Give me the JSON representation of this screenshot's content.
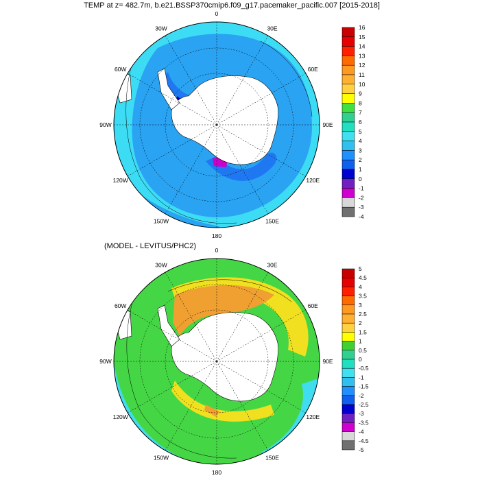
{
  "title": "TEMP at z= 482.7m, b.e21.BSSP370cmip6.f09_g17.pacemaker_pacific.007 [2015-2018]",
  "panels": [
    {
      "subtitle": "",
      "lon_labels": [
        {
          "text": "0",
          "lon": 0
        },
        {
          "text": "30E",
          "lon": 30
        },
        {
          "text": "60E",
          "lon": 60
        },
        {
          "text": "90E",
          "lon": 90
        },
        {
          "text": "120E",
          "lon": 120
        },
        {
          "text": "150E",
          "lon": 150
        },
        {
          "text": "180",
          "lon": 180
        },
        {
          "text": "150W",
          "lon": -150
        },
        {
          "text": "120W",
          "lon": -120
        },
        {
          "text": "90W",
          "lon": -90
        },
        {
          "text": "60W",
          "lon": -60
        },
        {
          "text": "30W",
          "lon": -30
        }
      ],
      "colorbar": {
        "labels": [
          "16",
          "15",
          "14",
          "13",
          "12",
          "11",
          "10",
          "9",
          "8",
          "7",
          "6",
          "5",
          "4",
          "3",
          "2",
          "1",
          "0",
          "-1",
          "-2",
          "-3",
          "-4"
        ],
        "colors": [
          "#c80000",
          "#e60000",
          "#ff2000",
          "#ff6a00",
          "#ff9a20",
          "#ffb030",
          "#ffd040",
          "#ffff00",
          "#40e040",
          "#30d090",
          "#20e0c0",
          "#40e0f0",
          "#30c0f0",
          "#2090ff",
          "#1060f0",
          "#0000d0",
          "#7020c0",
          "#d000d0",
          "#d8d8d8",
          "#707070"
        ]
      },
      "field": {
        "ocean_fill": "#29a3f2",
        "outer_band_fill": "#3ddcf5",
        "warm_patch_fill": "#1f78f2",
        "cold_patch_fill": "#0000c8",
        "magenta_patch_fill": "#cc00cc"
      }
    },
    {
      "subtitle": "(MODEL - LEVITUS/PHC2)",
      "lon_labels": [
        {
          "text": "0",
          "lon": 0
        },
        {
          "text": "30E",
          "lon": 30
        },
        {
          "text": "60E",
          "lon": 60
        },
        {
          "text": "90E",
          "lon": 90
        },
        {
          "text": "120E",
          "lon": 120
        },
        {
          "text": "150E",
          "lon": 150
        },
        {
          "text": "180",
          "lon": 180
        },
        {
          "text": "150W",
          "lon": -150
        },
        {
          "text": "120W",
          "lon": -120
        },
        {
          "text": "90W",
          "lon": -90
        },
        {
          "text": "60W",
          "lon": -60
        },
        {
          "text": "30W",
          "lon": -30
        }
      ],
      "colorbar": {
        "labels": [
          "5",
          "4.5",
          "4",
          "3.5",
          "3",
          "2.5",
          "2",
          "1.5",
          "1",
          "0.5",
          "0",
          "-0.5",
          "-1",
          "-1.5",
          "-2",
          "-2.5",
          "-3",
          "-3.5",
          "-4",
          "-4.5",
          "-5"
        ],
        "colors": [
          "#c80000",
          "#e60000",
          "#ff2000",
          "#ff6a00",
          "#ff9a20",
          "#ffb030",
          "#ffd040",
          "#ffff00",
          "#40d030",
          "#30d090",
          "#20e0c0",
          "#40e0f0",
          "#30c0f0",
          "#2090ff",
          "#1060f0",
          "#0000d0",
          "#7020c0",
          "#d000d0",
          "#d8d8d8",
          "#707070"
        ]
      },
      "field": {
        "base_fill": "#45d645",
        "orange_fill": "#f0a030",
        "yellow_fill": "#f0e020",
        "cyan_fill": "#40dcf0",
        "lightblue_fill": "#30c0f0",
        "blue_fill": "#2090ff"
      }
    }
  ]
}
